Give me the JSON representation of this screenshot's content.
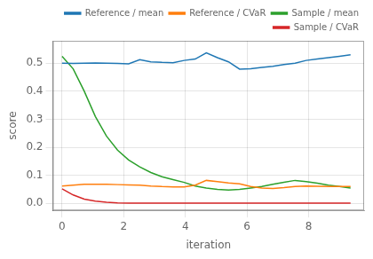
{
  "chart_data": {
    "type": "line",
    "xlabel": "iteration",
    "ylabel": "score",
    "x": [
      0.0,
      0.36,
      0.72,
      1.08,
      1.44,
      1.8,
      2.16,
      2.52,
      2.88,
      3.24,
      3.6,
      3.96,
      4.32,
      4.68,
      5.04,
      5.4,
      5.76,
      6.12,
      6.48,
      6.84,
      7.2,
      7.56,
      7.92,
      8.28,
      8.64,
      9.0,
      9.36
    ],
    "series": [
      {
        "name": "Reference / mean",
        "color": "#1f77b4",
        "values": [
          0.5,
          0.499,
          0.5,
          0.501,
          0.5,
          0.499,
          0.498,
          0.513,
          0.505,
          0.503,
          0.502,
          0.51,
          0.515,
          0.537,
          0.52,
          0.505,
          0.479,
          0.48,
          0.485,
          0.489,
          0.495,
          0.5,
          0.51,
          0.515,
          0.52,
          0.525,
          0.53
        ]
      },
      {
        "name": "Reference / CVaR",
        "color": "#ff7f0e",
        "values": [
          0.062,
          0.065,
          0.068,
          0.068,
          0.068,
          0.067,
          0.066,
          0.065,
          0.062,
          0.06,
          0.059,
          0.059,
          0.065,
          0.082,
          0.078,
          0.073,
          0.07,
          0.06,
          0.055,
          0.053,
          0.056,
          0.06,
          0.062,
          0.061,
          0.06,
          0.06,
          0.06
        ]
      },
      {
        "name": "Sample / mean",
        "color": "#2ca02c",
        "values": [
          0.525,
          0.48,
          0.4,
          0.31,
          0.24,
          0.19,
          0.155,
          0.13,
          0.11,
          0.095,
          0.085,
          0.075,
          0.062,
          0.055,
          0.05,
          0.048,
          0.05,
          0.055,
          0.06,
          0.068,
          0.075,
          0.082,
          0.078,
          0.072,
          0.065,
          0.06,
          0.055
        ]
      },
      {
        "name": "Sample / CVaR",
        "color": "#d62728",
        "values": [
          0.052,
          0.03,
          0.015,
          0.008,
          0.004,
          0.002,
          0.001,
          0.001,
          0.001,
          0.001,
          0.001,
          0.001,
          0.001,
          0.001,
          0.001,
          0.001,
          0.001,
          0.001,
          0.001,
          0.001,
          0.001,
          0.001,
          0.001,
          0.001,
          0.001,
          0.001,
          0.001
        ]
      }
    ],
    "xlim": [
      -0.3,
      9.8
    ],
    "ylim": [
      -0.025,
      0.58
    ],
    "xticks": [
      0,
      2,
      4,
      6,
      8
    ],
    "yticks": [
      {
        "value": 0.0,
        "label": "0.0"
      },
      0.1,
      0.2,
      0.3,
      0.4,
      0.5
    ],
    "grid": true,
    "legend": "upper right"
  }
}
